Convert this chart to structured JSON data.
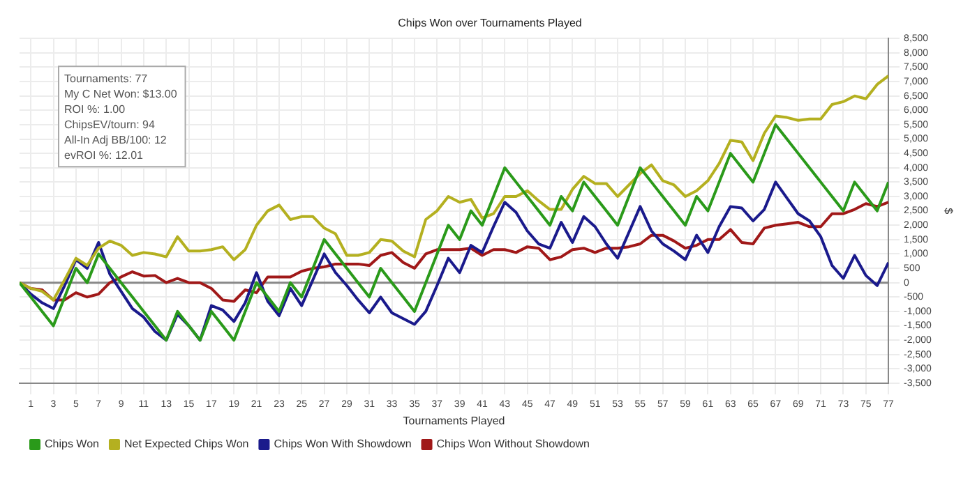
{
  "chart_data": {
    "type": "line",
    "title": "Chips Won over Tournaments Played",
    "xlabel": "Tournaments Played",
    "ylabel": "$",
    "annotations": [
      "Tournaments: 77",
      "My C Net Won: $13.00",
      "ROI %: 1.00",
      "ChipsEV/tourn: 94",
      "All-In Adj BB/100: 12",
      "evROI %: 12.01"
    ],
    "x": [
      0,
      1,
      2,
      3,
      4,
      5,
      6,
      7,
      8,
      9,
      10,
      11,
      12,
      13,
      14,
      15,
      16,
      17,
      18,
      19,
      20,
      21,
      22,
      23,
      24,
      25,
      26,
      27,
      28,
      29,
      30,
      31,
      32,
      33,
      34,
      35,
      36,
      37,
      38,
      39,
      40,
      41,
      42,
      43,
      44,
      45,
      46,
      47,
      48,
      49,
      50,
      51,
      52,
      53,
      54,
      55,
      56,
      57,
      58,
      59,
      60,
      61,
      62,
      63,
      64,
      65,
      66,
      67,
      68,
      69,
      70,
      71,
      72,
      73,
      74,
      75,
      76,
      77
    ],
    "series": [
      {
        "name": "Chips Won",
        "color": "#2a9a1a",
        "values": [
          0,
          -500,
          -1000,
          -1500,
          -500,
          500,
          0,
          1000,
          500,
          0,
          -500,
          -1000,
          -1500,
          -2000,
          -1000,
          -1500,
          -2000,
          -1000,
          -1500,
          -2000,
          -1000,
          0,
          -500,
          -1000,
          0,
          -500,
          500,
          1500,
          1000,
          500,
          0,
          -500,
          500,
          0,
          -500,
          -1000,
          0,
          1000,
          2000,
          1500,
          2500,
          2000,
          3000,
          4000,
          3500,
          3000,
          2500,
          2000,
          3000,
          2500,
          3500,
          3000,
          2500,
          2000,
          3000,
          4000,
          3500,
          3000,
          2500,
          2000,
          3000,
          2500,
          3500,
          4500,
          4000,
          3500,
          4500,
          5500,
          5000,
          4500,
          4000,
          3500,
          3000,
          2500,
          3500,
          3000,
          2500,
          3500
        ]
      },
      {
        "name": "Net Expected Chips Won",
        "color": "#b4b020",
        "values": [
          0,
          -200,
          -300,
          -600,
          100,
          850,
          600,
          1200,
          1450,
          1300,
          950,
          1050,
          1000,
          900,
          1600,
          1100,
          1100,
          1150,
          1250,
          800,
          1150,
          2000,
          2500,
          2700,
          2200,
          2300,
          2300,
          1900,
          1700,
          950,
          950,
          1050,
          1500,
          1450,
          1100,
          900,
          2200,
          2500,
          3000,
          2800,
          2900,
          2250,
          2400,
          3000,
          3000,
          3200,
          2850,
          2550,
          2550,
          3250,
          3700,
          3450,
          3450,
          3000,
          3400,
          3800,
          4100,
          3550,
          3400,
          3000,
          3200,
          3550,
          4150,
          4950,
          4900,
          4250,
          5200,
          5800,
          5750,
          5650,
          5700,
          5700,
          6200,
          6300,
          6500,
          6400,
          6900,
          7200
        ]
      },
      {
        "name": "Chips Won With Showdown",
        "color": "#1a1a8c",
        "values": [
          0,
          -400,
          -700,
          -900,
          -100,
          800,
          500,
          1400,
          300,
          -300,
          -900,
          -1200,
          -1700,
          -2000,
          -1100,
          -1500,
          -2000,
          -800,
          -950,
          -1350,
          -700,
          350,
          -650,
          -1150,
          -200,
          -800,
          100,
          1000,
          350,
          -100,
          -600,
          -1050,
          -500,
          -1050,
          -1250,
          -1450,
          -1000,
          -100,
          850,
          350,
          1300,
          1050,
          1950,
          2800,
          2450,
          1800,
          1350,
          1200,
          2100,
          1400,
          2300,
          1950,
          1350,
          850,
          1750,
          2650,
          1800,
          1350,
          1100,
          800,
          1650,
          1050,
          1950,
          2650,
          2600,
          2150,
          2550,
          3500,
          2950,
          2400,
          2150,
          1600,
          600,
          150,
          950,
          250,
          -100,
          700
        ]
      },
      {
        "name": "Chips Won Without Showdown",
        "color": "#a01818",
        "values": [
          0,
          -200,
          -250,
          -600,
          -600,
          -350,
          -500,
          -400,
          0,
          200,
          380,
          230,
          250,
          0,
          150,
          0,
          0,
          -200,
          -600,
          -650,
          -250,
          -350,
          200,
          200,
          200,
          400,
          500,
          550,
          650,
          650,
          650,
          600,
          950,
          1050,
          700,
          500,
          1000,
          1150,
          1150,
          1150,
          1200,
          950,
          1150,
          1150,
          1050,
          1250,
          1200,
          800,
          900,
          1150,
          1200,
          1050,
          1200,
          1200,
          1250,
          1350,
          1650,
          1650,
          1450,
          1200,
          1300,
          1500,
          1500,
          1850,
          1400,
          1350,
          1900,
          2000,
          2050,
          2100,
          1950,
          1950,
          2400,
          2400,
          2550,
          2750,
          2650,
          2800
        ]
      }
    ],
    "xlim": [
      0,
      77
    ],
    "xticks": [
      1,
      3,
      5,
      7,
      9,
      11,
      13,
      15,
      17,
      19,
      21,
      23,
      25,
      27,
      29,
      31,
      33,
      35,
      37,
      39,
      41,
      43,
      45,
      47,
      49,
      51,
      53,
      55,
      57,
      59,
      61,
      63,
      65,
      67,
      69,
      71,
      73,
      75,
      77
    ],
    "ylim": [
      -3500,
      8500
    ],
    "yticks": [
      {
        "value": -3500,
        "label": "-3,500"
      },
      {
        "value": -3000,
        "label": "-3,000"
      },
      {
        "value": -2500,
        "label": "-2,500"
      },
      {
        "value": -2000,
        "label": "-2,000"
      },
      {
        "value": -1500,
        "label": "-1,500"
      },
      {
        "value": -1000,
        "label": "-1,000"
      },
      -500,
      0,
      500,
      {
        "value": 1000,
        "label": "1,000"
      },
      {
        "value": 1500,
        "label": "1,500"
      },
      {
        "value": 2000,
        "label": "2,000"
      },
      {
        "value": 2500,
        "label": "2,500"
      },
      {
        "value": 3000,
        "label": "3,000"
      },
      {
        "value": 3500,
        "label": "3,500"
      },
      {
        "value": 4000,
        "label": "4,000"
      },
      {
        "value": 4500,
        "label": "4,500"
      },
      {
        "value": 5000,
        "label": "5,000"
      },
      {
        "value": 5500,
        "label": "5,500"
      },
      {
        "value": 6000,
        "label": "6,000"
      },
      {
        "value": 6500,
        "label": "6,500"
      },
      {
        "value": 7000,
        "label": "7,000"
      },
      {
        "value": 7500,
        "label": "7,500"
      },
      {
        "value": 8000,
        "label": "8,000"
      },
      {
        "value": 8500,
        "label": "8,500"
      }
    ],
    "ref_lines": [
      {
        "axis": "y",
        "value": 0,
        "color": "#888888"
      }
    ],
    "grid": true,
    "legend": "bottom left",
    "marker": "none",
    "line_style": "solid"
  }
}
